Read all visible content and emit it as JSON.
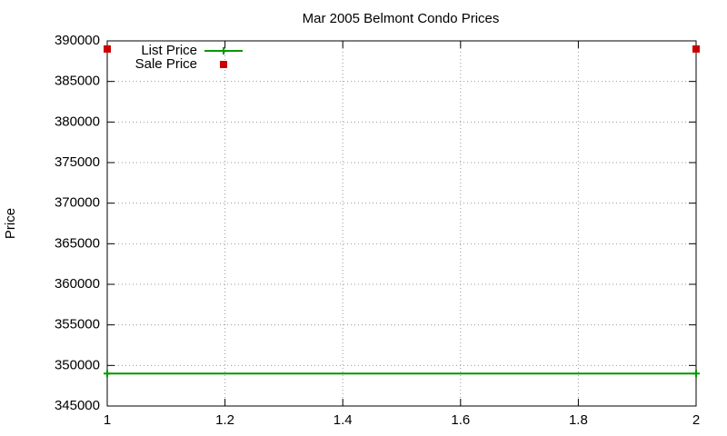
{
  "chart_data": {
    "type": "line",
    "title": "Mar 2005 Belmont Condo Prices",
    "y_label": "Price",
    "x": [
      1,
      2
    ],
    "series": [
      {
        "name": "List Price",
        "color": "#009900",
        "style": "linespoints",
        "values": [
          349000,
          349000
        ]
      },
      {
        "name": "Sale Price",
        "color": "#cc0000",
        "style": "points",
        "values": [
          389000,
          389000
        ]
      }
    ],
    "xlim": [
      1,
      2
    ],
    "xticks": [
      1,
      1.2,
      1.4,
      1.6,
      1.8,
      2
    ],
    "ylim": [
      345000,
      390000
    ],
    "yticks": [
      345000,
      350000,
      355000,
      360000,
      365000,
      370000,
      375000,
      380000,
      385000,
      390000
    ],
    "grid": true,
    "legend": "top-left"
  }
}
